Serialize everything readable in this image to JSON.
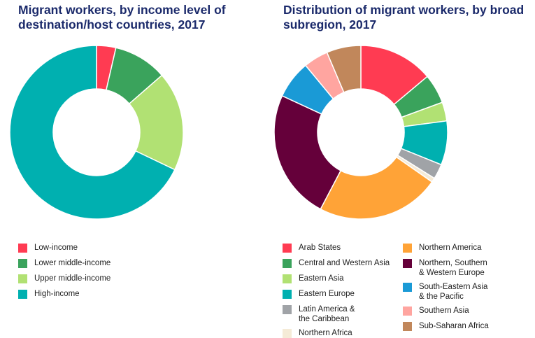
{
  "chart_data": [
    {
      "type": "pie",
      "title": "Migrant workers, by income level of destination/host countries, 2017",
      "series": [
        {
          "name": "Low-income",
          "value": 3.6,
          "color": "#ff3b52"
        },
        {
          "name": "Lower middle-income",
          "value": 10.0,
          "color": "#3aa35c"
        },
        {
          "name": "Upper middle-income",
          "value": 18.5,
          "color": "#b1e173"
        },
        {
          "name": "High-income",
          "value": 67.9,
          "color": "#00b0b0"
        }
      ]
    },
    {
      "type": "pie",
      "title": "Distribution of migrant workers, by broad subregion, 2017",
      "series": [
        {
          "name": "Arab States",
          "value": 13.9,
          "color": "#ff3b52"
        },
        {
          "name": "Central and Western Asia",
          "value": 5.5,
          "color": "#3aa35c"
        },
        {
          "name": "Eastern Asia",
          "value": 3.5,
          "color": "#b1e173"
        },
        {
          "name": "Eastern Europe",
          "value": 8.2,
          "color": "#00b0b0"
        },
        {
          "name": "Latin America &\nthe Caribbean",
          "value": 2.8,
          "color": "#a0a3a7"
        },
        {
          "name": "Northern Africa",
          "value": 0.8,
          "color": "#f5ebd7"
        },
        {
          "name": "Northern America",
          "value": 23.0,
          "color": "#ffa337"
        },
        {
          "name": "Northern, Southern\n& Western Europe",
          "value": 24.2,
          "color": "#65003a"
        },
        {
          "name": "South-Eastern Asia\n& the Pacific",
          "value": 7.1,
          "color": "#1a9ad6"
        },
        {
          "name": "Southern Asia",
          "value": 4.6,
          "color": "#ffa5a0"
        },
        {
          "name": "Sub-Saharan Africa",
          "value": 6.4,
          "color": "#c1875b"
        }
      ]
    }
  ]
}
